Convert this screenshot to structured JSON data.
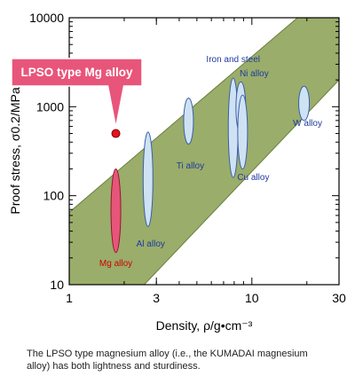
{
  "chart_data": {
    "type": "scatter",
    "xlabel": "Density, ρ/g•cm⁻³",
    "ylabel": "Proof stress, σ0.2/MPa",
    "x_scale": "log",
    "y_scale": "log",
    "xlim": [
      1,
      30
    ],
    "ylim": [
      10,
      10000
    ],
    "x_ticks": [
      "1",
      "3",
      "10",
      "30"
    ],
    "y_ticks": [
      "10",
      "100",
      "1000",
      "10000"
    ],
    "band": {
      "x": [
        1,
        30
      ],
      "lower_y": [
        1.3,
        2000
      ],
      "upper_y": [
        65,
        25000
      ],
      "color": "#9aad6a",
      "border": "#6a7f3f"
    },
    "materials": [
      {
        "label": "Mg alloy",
        "x": 1.8,
        "y_range": [
          23,
          200
        ],
        "color": "#e8557a",
        "label_color": "#cc0000"
      },
      {
        "label": "Al alloy",
        "x": 2.7,
        "y_range": [
          45,
          520
        ],
        "color": "#cfe2f3",
        "label_color": "#1f3a9e"
      },
      {
        "label": "Ti alloy",
        "x": 4.5,
        "y_range": [
          380,
          1250
        ],
        "color": "#cfe2f3",
        "label_color": "#1f3a9e"
      },
      {
        "label": "Iron and steel",
        "x": 7.9,
        "y_range": [
          160,
          2100
        ],
        "color": "#cfe2f3",
        "label_color": "#1f3a9e"
      },
      {
        "label": "Ni alloy",
        "x": 8.7,
        "y_range": [
          500,
          1900
        ],
        "color": "#cfe2f3",
        "label_color": "#1f3a9e"
      },
      {
        "label": "Cu alloy",
        "x": 8.9,
        "y_range": [
          200,
          1350
        ],
        "color": "#cfe2f3",
        "label_color": "#1f3a9e"
      },
      {
        "label": "W alloy",
        "x": 19.3,
        "y_range": [
          700,
          1700
        ],
        "color": "#cfe2f3",
        "label_color": "#1f3a9e"
      }
    ],
    "highlight_point": {
      "x": 1.8,
      "y": 500,
      "color": "#e8101e"
    },
    "callout": {
      "text": "LPSO type Mg alloy",
      "color": "#e8557a"
    }
  },
  "caption": "The LPSO type magnesium alloy (i.e., the KUMADAI magnesium alloy) has both lightness and sturdiness."
}
